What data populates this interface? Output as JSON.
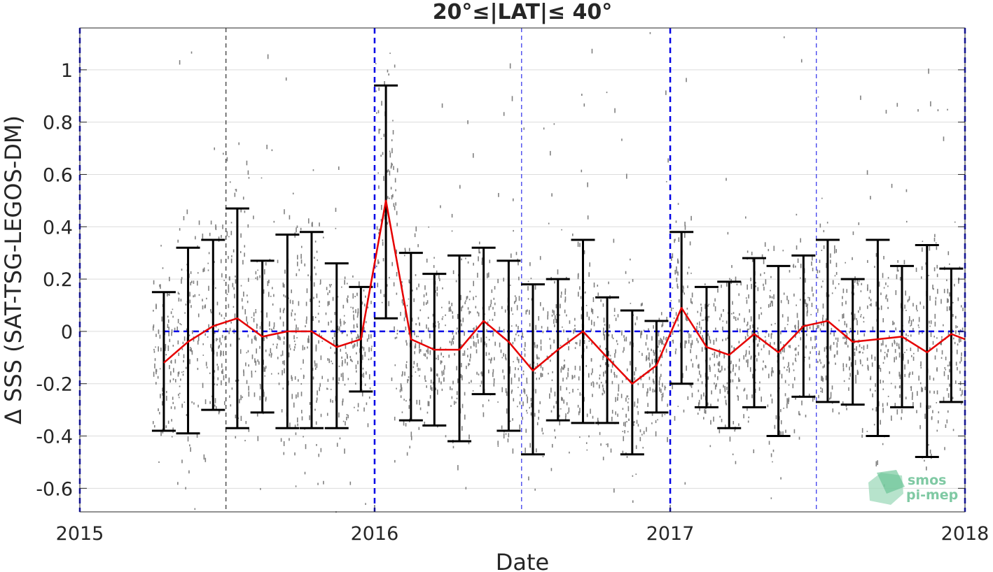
{
  "chart_data": {
    "type": "scatter",
    "title": "20°≤|LAT|≤ 40°",
    "xlabel": "Date",
    "ylabel": "Δ SSS (SAT-TSG-LEGOS-DM)",
    "xlim": [
      "2015-01-01",
      "2018-01-01"
    ],
    "ylim": [
      -0.69,
      1.16
    ],
    "yticks": [
      -0.6,
      -0.4,
      -0.2,
      0,
      0.2,
      0.4,
      0.6,
      0.8,
      1
    ],
    "ytick_labels": [
      "-0.6",
      "-0.4",
      "-0.2",
      "0",
      "0.2",
      "0.4",
      "0.6",
      "0.8",
      "1"
    ],
    "xtick_labels": [
      "2015",
      "2016",
      "2017",
      "2018"
    ],
    "xticks": [
      "2015-01-01",
      "2016-01-01",
      "2017-01-01",
      "2018-01-01"
    ],
    "grid": "horizontal",
    "zero_line": {
      "y": 0,
      "color": "#0000e6",
      "style": "dashed"
    },
    "year_lines": {
      "dates": [
        "2015-01-01",
        "2016-01-01",
        "2017-01-01",
        "2018-01-01"
      ],
      "color": "#0000e6",
      "style": "dashed"
    },
    "midyear_lines": [
      {
        "date": "2015-07-01",
        "color": "#000000",
        "style": "dashed"
      },
      {
        "date": "2016-07-01",
        "color": "#0000e6",
        "style": "dashed"
      },
      {
        "date": "2017-07-01",
        "color": "#0000e6",
        "style": "dashed"
      }
    ],
    "scatter_color": "#808080",
    "series": [
      {
        "style": "errorbar",
        "color": "#000000",
        "points": [
          {
            "x": "2015-04-15",
            "low": -0.38,
            "high": 0.15
          },
          {
            "x": "2015-05-15",
            "low": -0.39,
            "high": 0.32
          },
          {
            "x": "2015-06-15",
            "low": -0.3,
            "high": 0.35
          },
          {
            "x": "2015-07-15",
            "low": -0.37,
            "high": 0.47
          },
          {
            "x": "2015-08-15",
            "low": -0.31,
            "high": 0.27
          },
          {
            "x": "2015-09-15",
            "low": -0.37,
            "high": 0.37
          },
          {
            "x": "2015-10-15",
            "low": -0.37,
            "high": 0.38
          },
          {
            "x": "2015-11-15",
            "low": -0.37,
            "high": 0.26
          },
          {
            "x": "2015-12-15",
            "low": -0.23,
            "high": 0.17
          },
          {
            "x": "2016-01-15",
            "low": 0.05,
            "high": 0.94
          },
          {
            "x": "2016-02-15",
            "low": -0.34,
            "high": 0.3
          },
          {
            "x": "2016-03-15",
            "low": -0.36,
            "high": 0.22
          },
          {
            "x": "2016-04-15",
            "low": -0.42,
            "high": 0.29
          },
          {
            "x": "2016-05-15",
            "low": -0.24,
            "high": 0.32
          },
          {
            "x": "2016-06-15",
            "low": -0.38,
            "high": 0.27
          },
          {
            "x": "2016-07-15",
            "low": -0.47,
            "high": 0.18
          },
          {
            "x": "2016-08-15",
            "low": -0.34,
            "high": 0.2
          },
          {
            "x": "2016-09-15",
            "low": -0.35,
            "high": 0.35
          },
          {
            "x": "2016-10-15",
            "low": -0.35,
            "high": 0.13
          },
          {
            "x": "2016-11-15",
            "low": -0.47,
            "high": 0.08
          },
          {
            "x": "2016-12-15",
            "low": -0.31,
            "high": 0.04
          },
          {
            "x": "2017-01-15",
            "low": -0.2,
            "high": 0.38
          },
          {
            "x": "2017-02-15",
            "low": -0.29,
            "high": 0.17
          },
          {
            "x": "2017-03-15",
            "low": -0.37,
            "high": 0.19
          },
          {
            "x": "2017-04-15",
            "low": -0.29,
            "high": 0.28
          },
          {
            "x": "2017-05-15",
            "low": -0.4,
            "high": 0.25
          },
          {
            "x": "2017-06-15",
            "low": -0.25,
            "high": 0.29
          },
          {
            "x": "2017-07-15",
            "low": -0.27,
            "high": 0.35
          },
          {
            "x": "2017-08-15",
            "low": -0.28,
            "high": 0.2
          },
          {
            "x": "2017-09-15",
            "low": -0.4,
            "high": 0.35
          },
          {
            "x": "2017-10-15",
            "low": -0.29,
            "high": 0.25
          },
          {
            "x": "2017-11-15",
            "low": -0.48,
            "high": 0.33
          },
          {
            "x": "2017-12-15",
            "low": -0.27,
            "high": 0.24
          }
        ]
      },
      {
        "style": "line",
        "color": "#e60000",
        "x": [
          "2015-04-15",
          "2015-05-15",
          "2015-06-15",
          "2015-07-15",
          "2015-08-15",
          "2015-09-15",
          "2015-10-15",
          "2015-11-15",
          "2015-12-15",
          "2016-01-15",
          "2016-02-15",
          "2016-03-15",
          "2016-04-15",
          "2016-05-15",
          "2016-06-15",
          "2016-07-15",
          "2016-08-15",
          "2016-09-15",
          "2016-10-15",
          "2016-11-15",
          "2016-12-15",
          "2017-01-15",
          "2017-02-15",
          "2017-03-15",
          "2017-04-15",
          "2017-05-15",
          "2017-06-15",
          "2017-07-15",
          "2017-08-15",
          "2017-09-15",
          "2017-10-15",
          "2017-11-15",
          "2017-12-15",
          "2018-01-01"
        ],
        "y": [
          -0.12,
          -0.04,
          0.02,
          0.05,
          -0.02,
          0.0,
          0.0,
          -0.06,
          -0.03,
          0.5,
          -0.03,
          -0.07,
          -0.07,
          0.04,
          -0.04,
          -0.15,
          -0.07,
          0.0,
          -0.1,
          -0.2,
          -0.13,
          0.09,
          -0.06,
          -0.09,
          -0.01,
          -0.08,
          0.02,
          0.04,
          -0.04,
          -0.03,
          -0.02,
          -0.08,
          -0.01,
          -0.03
        ]
      }
    ]
  },
  "logo": {
    "line1": "smos",
    "line2": "pi-mep"
  }
}
